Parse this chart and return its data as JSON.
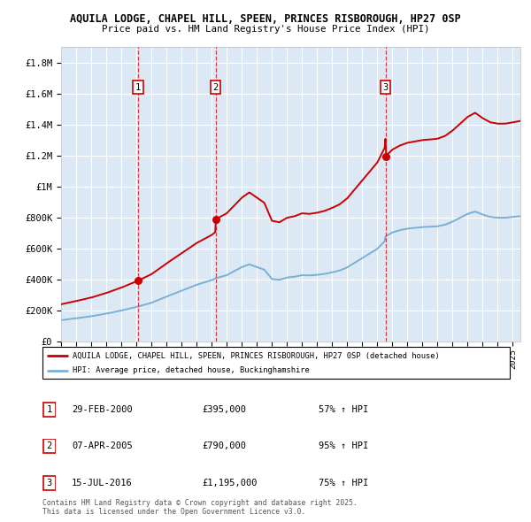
{
  "title_line1": "AQUILA LODGE, CHAPEL HILL, SPEEN, PRINCES RISBOROUGH, HP27 0SP",
  "title_line2": "Price paid vs. HM Land Registry's House Price Index (HPI)",
  "plot_bg_color": "#dce9f5",
  "ylim": [
    0,
    1900000
  ],
  "yticks": [
    0,
    200000,
    400000,
    600000,
    800000,
    1000000,
    1200000,
    1400000,
    1600000,
    1800000
  ],
  "ytick_labels": [
    "£0",
    "£200K",
    "£400K",
    "£600K",
    "£800K",
    "£1M",
    "£1.2M",
    "£1.4M",
    "£1.6M",
    "£1.8M"
  ],
  "red_line_color": "#cc0000",
  "blue_line_color": "#7ab0d4",
  "sale_points": [
    {
      "date_num": 2000.12,
      "price": 395000,
      "label": "1"
    },
    {
      "date_num": 2005.27,
      "price": 790000,
      "label": "2"
    },
    {
      "date_num": 2016.54,
      "price": 1195000,
      "label": "3"
    }
  ],
  "legend_line1": "AQUILA LODGE, CHAPEL HILL, SPEEN, PRINCES RISBOROUGH, HP27 0SP (detached house)",
  "legend_line2": "HPI: Average price, detached house, Buckinghamshire",
  "table_data": [
    [
      "1",
      "29-FEB-2000",
      "£395,000",
      "57% ↑ HPI"
    ],
    [
      "2",
      "07-APR-2005",
      "£790,000",
      "95% ↑ HPI"
    ],
    [
      "3",
      "15-JUL-2016",
      "£1,195,000",
      "75% ↑ HPI"
    ]
  ],
  "footer": "Contains HM Land Registry data © Crown copyright and database right 2025.\nThis data is licensed under the Open Government Licence v3.0.",
  "xmin": 1995,
  "xmax": 2025.5
}
